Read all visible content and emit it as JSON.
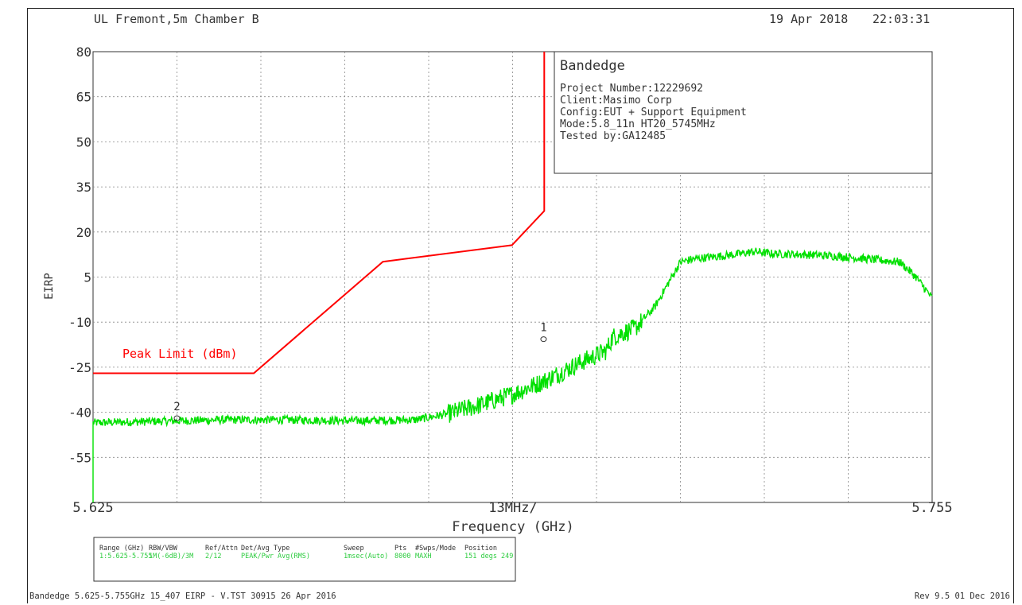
{
  "header": {
    "site": "UL Fremont,5m Chamber B",
    "date": "19 Apr 2018",
    "time": "22:03:31"
  },
  "info_box": {
    "title": "Bandedge",
    "lines": [
      "Project Number:12229692",
      "Client:Masimo Corp",
      "Config:EUT + Support Equipment",
      "Mode:5.8_11n HT20_5745MHz",
      "Tested by:GA12485"
    ]
  },
  "chart_data": {
    "type": "line",
    "ylabel": "EIRP",
    "xlabel": "Frequency (GHz)",
    "x_start_label": "5.625",
    "x_stop_label": "5.755",
    "x_span_label": "13MHz/",
    "xlim": [
      5.625,
      5.755
    ],
    "ylim": [
      -70,
      80
    ],
    "y_ticks": [
      80,
      65,
      50,
      35,
      20,
      5,
      -10,
      -25,
      -40,
      -55
    ],
    "grid": true,
    "colors": {
      "limit": "#ff0000",
      "trace": "#00e000",
      "grid": "#888888"
    },
    "limit": {
      "name": "Peak Limit (dBm)",
      "x": [
        5.625,
        5.6499,
        5.6699,
        5.6899,
        5.6949,
        5.6949
      ],
      "y": [
        -27,
        -27,
        10.1,
        15.6,
        27,
        80
      ]
    },
    "trace": {
      "x": [
        5.625,
        5.635,
        5.645,
        5.655,
        5.665,
        5.675,
        5.68,
        5.685,
        5.69,
        5.695,
        5.7,
        5.7045,
        5.7055,
        5.709,
        5.712,
        5.716,
        5.718,
        5.72,
        5.7245,
        5.7275,
        5.73,
        5.735,
        5.74,
        5.745,
        5.75,
        5.7525,
        5.755
      ],
      "y": [
        -43.5,
        -43,
        -42.5,
        -42.5,
        -42.8,
        -42.5,
        -40.5,
        -37.5,
        -34,
        -29.5,
        -24,
        -19.5,
        -15,
        -12,
        -5,
        10,
        11,
        11.5,
        12.5,
        13.5,
        12.8,
        12.5,
        12,
        11,
        10,
        5,
        -2
      ]
    },
    "markers": [
      {
        "label": "1",
        "x": 5.6948,
        "y": -16.2
      },
      {
        "label": "2",
        "x": 5.638,
        "y": -42.5
      }
    ]
  },
  "settings_box": {
    "headers": [
      "Range (GHz)",
      "RBW/VBW",
      "Ref/Attn",
      "Det/Avg Type",
      "Sweep",
      "Pts",
      "#Swps/Mode",
      "Position"
    ],
    "values": [
      "1:5.625-5.755",
      "1M(-6dB)/3M",
      "2/12",
      "PEAK/Pwr Avg(RMS)",
      "1msec(Auto)",
      "8000",
      "MAXH",
      "151 degs 249"
    ]
  },
  "footer": {
    "left": "Bandedge 5.625-5.755GHz 15_407 EIRP - V.TST 30915 26 Apr 2016",
    "right": "Rev 9.5 01 Dec 2016"
  }
}
